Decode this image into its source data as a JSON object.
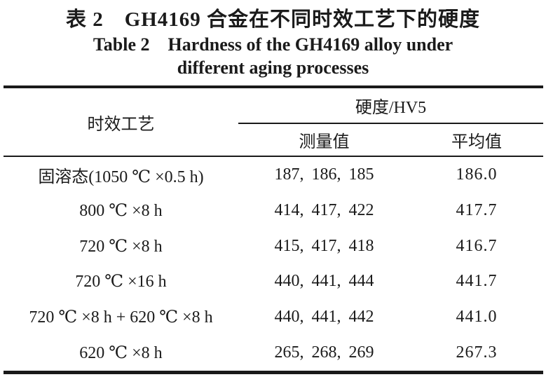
{
  "title": {
    "zh": "表 2　GH4169 合金在不同时效工艺下的硬度",
    "en_line1": "Table 2　Hardness of the GH4169 alloy under",
    "en_line2": "different aging processes"
  },
  "table": {
    "headers": {
      "process": "时效工艺",
      "hardness_group": "硬度/HV5",
      "measured": "测量值",
      "average": "平均值"
    },
    "rows": [
      {
        "process": "固溶态(1050 ℃ ×0.5 h)",
        "measured": "187, 186, 185",
        "average": "186.0"
      },
      {
        "process": "800 ℃ ×8 h",
        "measured": "414, 417, 422",
        "average": "417.7"
      },
      {
        "process": "720 ℃ ×8 h",
        "measured": "415, 417, 418",
        "average": "416.7"
      },
      {
        "process": "720 ℃ ×16 h",
        "measured": "440, 441, 444",
        "average": "441.7"
      },
      {
        "process": "720 ℃ ×8 h + 620 ℃ ×8 h",
        "measured": "440, 441, 442",
        "average": "441.0"
      },
      {
        "process": "620 ℃ ×8 h",
        "measured": "265, 268, 269",
        "average": "267.3"
      }
    ]
  },
  "colors": {
    "text": "#1b1b1b",
    "rule": "#1a1a1a",
    "background": "#ffffff"
  }
}
